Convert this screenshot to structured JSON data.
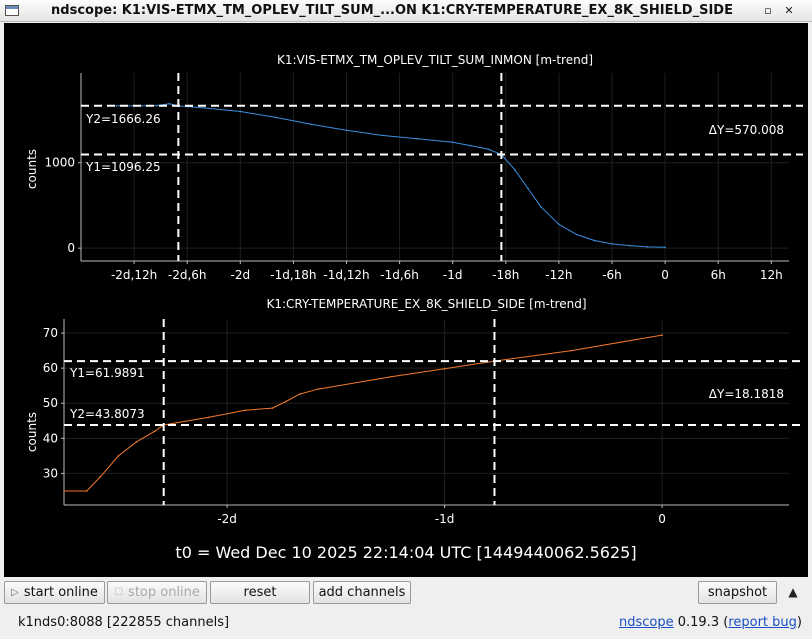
{
  "window": {
    "title": "ndscope: K1:VIS-ETMX_TM_OPLEV_TILT_SUM_...ON K1:CRY-TEMPERATURE_EX_8K_SHIELD_SIDE",
    "minimize": "▫",
    "close": "✕"
  },
  "plots": [
    {
      "title": "K1:VIS-ETMX_TM_OPLEV_TILT_SUM_INMON [m-trend]",
      "ylabel": "counts",
      "y_ticks": [
        "1000",
        "0"
      ],
      "x_ticks": [
        "-2d,12h",
        "-2d,6h",
        "-2d",
        "-1d,18h",
        "-1d,12h",
        "-1d,6h",
        "-1d",
        "-18h",
        "-12h",
        "-6h",
        "0",
        "6h",
        "12h"
      ],
      "cursor_y2": "Y2=1666.26",
      "cursor_y1": "Y1=1096.25",
      "delta_y": "ΔY=570.008",
      "trace_color": "#3b8fe0"
    },
    {
      "title": "K1:CRY-TEMPERATURE_EX_8K_SHIELD_SIDE [m-trend]",
      "ylabel": "counts",
      "y_ticks": [
        "70",
        "60",
        "50",
        "40",
        "30"
      ],
      "x_ticks": [
        "-2d",
        "-1d",
        "0"
      ],
      "cursor_y1": "Y1=61.9891",
      "cursor_y2": "Y2=43.8073",
      "delta_y": "ΔY=18.1818",
      "trace_color": "#f07a2a"
    }
  ],
  "chart_data": [
    {
      "type": "line",
      "title": "K1:VIS-ETMX_TM_OPLEV_TILT_SUM_INMON [m-trend]",
      "ylabel": "counts",
      "x_unit": "hours relative to t0",
      "xlim": [
        -66,
        14
      ],
      "ylim": [
        -150,
        2050
      ],
      "x": [
        -62,
        -60,
        -57.5,
        -56,
        -55,
        -52,
        -48,
        -44,
        -40,
        -36,
        -32,
        -28,
        -24,
        -22,
        -20,
        -18.5,
        -17,
        -15.5,
        -14,
        -12,
        -10,
        -8,
        -6,
        -4,
        -2,
        0
      ],
      "values": [
        1666,
        1665,
        1668,
        1690,
        1665,
        1640,
        1600,
        1530,
        1450,
        1380,
        1320,
        1280,
        1240,
        1200,
        1160,
        1096,
        920,
        700,
        480,
        280,
        160,
        90,
        50,
        30,
        15,
        10
      ],
      "cursors_x": [
        -55,
        -18.5
      ],
      "cursors_y": [
        1666.26,
        1096.25
      ],
      "grid": true
    },
    {
      "type": "line",
      "title": "K1:CRY-TEMPERATURE_EX_8K_SHIELD_SIDE [m-trend]",
      "ylabel": "counts",
      "x_unit": "hours relative to t0",
      "xlim": [
        -66,
        14
      ],
      "ylim": [
        21,
        74
      ],
      "x": [
        -66,
        -63.5,
        -62,
        -60,
        -58,
        -56,
        -55,
        -50,
        -46,
        -43,
        -41.5,
        -40,
        -38,
        -30,
        -24,
        -18.5,
        -10,
        0
      ],
      "values": [
        25,
        25,
        29,
        35,
        39,
        42,
        43.8,
        46,
        48,
        48.6,
        50.5,
        52.6,
        54,
        57.5,
        59.8,
        62,
        65,
        69.4
      ],
      "cursors_x": [
        -55,
        -18.5
      ],
      "cursors_y": [
        61.9891,
        43.8073
      ],
      "grid": true
    }
  ],
  "t0_label": "t0 = Wed Dec 10 2025 22:14:04 UTC [1449440062.5625]",
  "toolbar": {
    "start_online": "start online",
    "stop_online": "stop online",
    "reset": "reset",
    "add_channels": "add channels",
    "snapshot": "snapshot"
  },
  "status": {
    "server": "k1nds0:8088 [222855 channels]",
    "app_name": "ndscope",
    "version": "0.19.3",
    "report_bug": "report bug"
  }
}
